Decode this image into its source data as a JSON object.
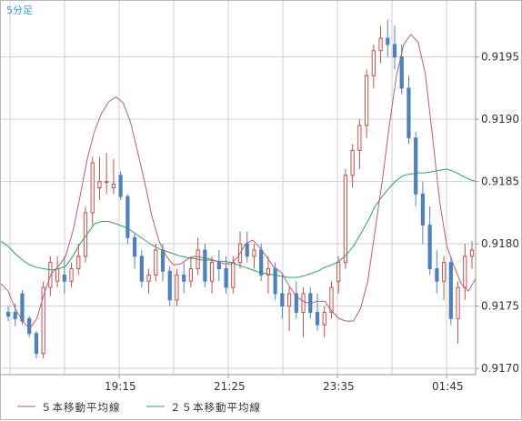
{
  "period_label": "5分足",
  "chart_data": {
    "type": "candlestick",
    "period": "5分足",
    "x_ticks": [
      "19:15",
      "21:25",
      "23:35",
      "01:45"
    ],
    "y_ticks": [
      "0.9170",
      "0.9175",
      "0.9180",
      "0.9185",
      "0.9190",
      "0.9195"
    ],
    "ylim": [
      0.91695,
      0.91995
    ],
    "grid": true,
    "colors": {
      "up": "#c0504d",
      "down": "#4f81bd",
      "ma5": "#b0607a",
      "ma25": "#2e9e66"
    },
    "legend": [
      {
        "name": "５本移動平均線",
        "color": "#b0607a"
      },
      {
        "name": "２５本移動平均線",
        "color": "#2e9e66"
      }
    ],
    "ma5": [
      0.91768,
      0.91762,
      0.91748,
      0.91738,
      0.91732,
      0.9174,
      0.9176,
      0.91776,
      0.91782,
      0.9179,
      0.9181,
      0.91838,
      0.91868,
      0.9189,
      0.91905,
      0.91914,
      0.91918,
      0.91913,
      0.91898,
      0.91874,
      0.91849,
      0.91822,
      0.91802,
      0.9179,
      0.91783,
      0.91784,
      0.91788,
      0.9179,
      0.91789,
      0.91788,
      0.91786,
      0.91784,
      0.91784,
      0.9179,
      0.918,
      0.91803,
      0.91797,
      0.91789,
      0.91781,
      0.91777,
      0.91767,
      0.91758,
      0.91754,
      0.91752,
      0.91754,
      0.91754,
      0.91746,
      0.9174,
      0.91738,
      0.91738,
      0.91748,
      0.9177,
      0.9181,
      0.9185,
      0.91895,
      0.91935,
      0.9196,
      0.91968,
      0.91962,
      0.91937,
      0.91887,
      0.91834,
      0.91798,
      0.91782,
      0.91768,
      0.91762,
      0.91772
    ],
    "ma25": [
      0.91802,
      0.91798,
      0.91792,
      0.91787,
      0.91783,
      0.91781,
      0.9178,
      0.91779,
      0.9178,
      0.91782,
      0.9179,
      0.918,
      0.91808,
      0.91816,
      0.91818,
      0.91818,
      0.91816,
      0.91814,
      0.91811,
      0.91807,
      0.91803,
      0.91799,
      0.91796,
      0.91794,
      0.91792,
      0.9179,
      0.91789,
      0.91788,
      0.91787,
      0.91787,
      0.91786,
      0.91786,
      0.91785,
      0.91783,
      0.91781,
      0.91779,
      0.91777,
      0.91776,
      0.91775,
      0.91774,
      0.91773,
      0.91773,
      0.91774,
      0.91776,
      0.91778,
      0.91781,
      0.91783,
      0.91786,
      0.91791,
      0.91798,
      0.91808,
      0.91818,
      0.9183,
      0.91838,
      0.91845,
      0.91851,
      0.91855,
      0.91856,
      0.91857,
      0.91857,
      0.91858,
      0.91859,
      0.9186,
      0.91858,
      0.91855,
      0.91852,
      0.9185
    ],
    "candles": [
      [
        0.91745,
        0.9175,
        0.91738,
        0.91742
      ],
      [
        0.91745,
        0.91752,
        0.91734,
        0.9174
      ],
      [
        0.9176,
        0.91763,
        0.91735,
        0.91738
      ],
      [
        0.9174,
        0.91742,
        0.91725,
        0.91728
      ],
      [
        0.91728,
        0.9173,
        0.91708,
        0.91712
      ],
      [
        0.91712,
        0.9177,
        0.91708,
        0.91765
      ],
      [
        0.91765,
        0.9179,
        0.91758,
        0.91785
      ],
      [
        0.9177,
        0.9179,
        0.91765,
        0.9178
      ],
      [
        0.91775,
        0.9179,
        0.9176,
        0.9177
      ],
      [
        0.9177,
        0.91785,
        0.91765,
        0.9178
      ],
      [
        0.9178,
        0.918,
        0.91775,
        0.9179
      ],
      [
        0.9179,
        0.9183,
        0.91785,
        0.91825
      ],
      [
        0.91825,
        0.9187,
        0.91815,
        0.91865
      ],
      [
        0.91845,
        0.9187,
        0.91835,
        0.9185
      ],
      [
        0.9185,
        0.91873,
        0.9184,
        0.9185
      ],
      [
        0.91845,
        0.91868,
        0.9184,
        0.91848
      ],
      [
        0.91855,
        0.91858,
        0.91835,
        0.91838
      ],
      [
        0.91838,
        0.9184,
        0.918,
        0.91805
      ],
      [
        0.91805,
        0.91808,
        0.9178,
        0.9179
      ],
      [
        0.9179,
        0.91795,
        0.91765,
        0.9177
      ],
      [
        0.9177,
        0.9178,
        0.9176,
        0.91775
      ],
      [
        0.91775,
        0.918,
        0.9177,
        0.91795
      ],
      [
        0.91795,
        0.918,
        0.9177,
        0.91778
      ],
      [
        0.91778,
        0.91782,
        0.9175,
        0.91755
      ],
      [
        0.91755,
        0.9178,
        0.9175,
        0.91775
      ],
      [
        0.91775,
        0.91785,
        0.9176,
        0.9177
      ],
      [
        0.9177,
        0.9179,
        0.91765,
        0.9178
      ],
      [
        0.9178,
        0.91805,
        0.91775,
        0.91795
      ],
      [
        0.91795,
        0.918,
        0.91765,
        0.9177
      ],
      [
        0.9177,
        0.9179,
        0.9176,
        0.91785
      ],
      [
        0.91785,
        0.91795,
        0.9177,
        0.9178
      ],
      [
        0.9178,
        0.9179,
        0.9176,
        0.91765
      ],
      [
        0.91765,
        0.9179,
        0.9176,
        0.91785
      ],
      [
        0.91785,
        0.9181,
        0.9178,
        0.918
      ],
      [
        0.918,
        0.9181,
        0.91785,
        0.9179
      ],
      [
        0.9179,
        0.918,
        0.9178,
        0.91795
      ],
      [
        0.91795,
        0.918,
        0.9177,
        0.91775
      ],
      [
        0.91775,
        0.9179,
        0.9176,
        0.9178
      ],
      [
        0.9178,
        0.91785,
        0.91755,
        0.9176
      ],
      [
        0.9176,
        0.91775,
        0.9174,
        0.9175
      ],
      [
        0.9175,
        0.91765,
        0.9173,
        0.9176
      ],
      [
        0.9176,
        0.9177,
        0.9174,
        0.91745
      ],
      [
        0.91745,
        0.91765,
        0.91725,
        0.9176
      ],
      [
        0.9176,
        0.91765,
        0.9174,
        0.91745
      ],
      [
        0.91745,
        0.9176,
        0.9173,
        0.91735
      ],
      [
        0.91735,
        0.9175,
        0.91725,
        0.91745
      ],
      [
        0.91745,
        0.9177,
        0.9174,
        0.91765
      ],
      [
        0.9177,
        0.9179,
        0.9176,
        0.91785
      ],
      [
        0.91785,
        0.9186,
        0.9178,
        0.91855
      ],
      [
        0.91855,
        0.9188,
        0.91845,
        0.91875
      ],
      [
        0.91875,
        0.919,
        0.9186,
        0.91895
      ],
      [
        0.91895,
        0.9194,
        0.91885,
        0.91935
      ],
      [
        0.91935,
        0.9196,
        0.91925,
        0.91955
      ],
      [
        0.91955,
        0.91975,
        0.91945,
        0.91965
      ],
      [
        0.91965,
        0.9198,
        0.9195,
        0.9196
      ],
      [
        0.9196,
        0.91975,
        0.9194,
        0.9195
      ],
      [
        0.9195,
        0.9196,
        0.9192,
        0.91925
      ],
      [
        0.91925,
        0.91935,
        0.9188,
        0.91885
      ],
      [
        0.91885,
        0.9189,
        0.9183,
        0.9184
      ],
      [
        0.9184,
        0.9185,
        0.918,
        0.91815
      ],
      [
        0.91815,
        0.9183,
        0.91775,
        0.9178
      ],
      [
        0.9178,
        0.91795,
        0.9176,
        0.9177
      ],
      [
        0.9177,
        0.9179,
        0.91755,
        0.91785
      ],
      [
        0.91785,
        0.9179,
        0.91735,
        0.9174
      ],
      [
        0.9174,
        0.9177,
        0.9172,
        0.91765
      ],
      [
        0.91765,
        0.918,
        0.91755,
        0.9179
      ],
      [
        0.9179,
        0.91802,
        0.9178,
        0.91795
      ]
    ]
  }
}
